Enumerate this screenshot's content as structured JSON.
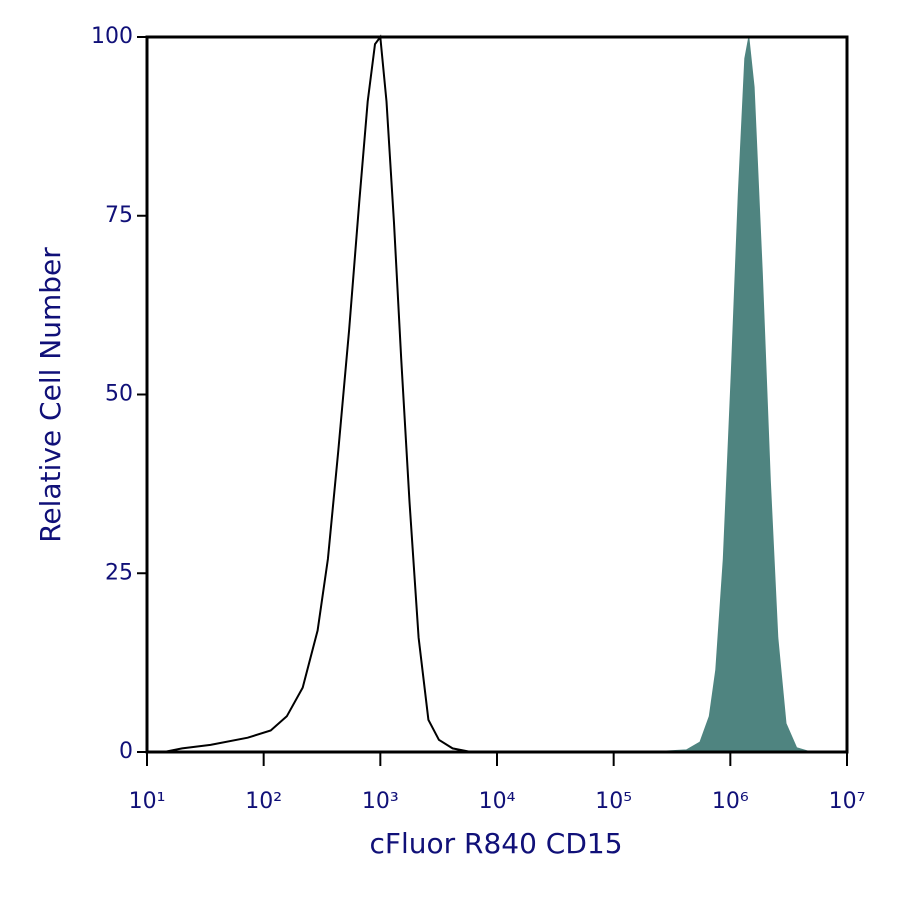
{
  "chart_data": {
    "type": "line",
    "x_label": "cFluor R840 CD15",
    "y_label": "Relative Cell Number",
    "xscale": "log",
    "xlim": [
      10,
      10000000
    ],
    "ylim": [
      0,
      100
    ],
    "xticks": [
      {
        "value": 10,
        "label": "10¹"
      },
      {
        "value": 100,
        "label": "10²"
      },
      {
        "value": 1000,
        "label": "10³"
      },
      {
        "value": 10000,
        "label": "10⁴"
      },
      {
        "value": 100000,
        "label": "10⁵"
      },
      {
        "value": 1000000,
        "label": "10⁶"
      },
      {
        "value": 10000000,
        "label": "10⁷"
      }
    ],
    "yticks": [
      0,
      25,
      50,
      75,
      100
    ],
    "series": [
      {
        "color": "#000000",
        "filled": false,
        "x": [
          14,
          20,
          35,
          73,
          115,
          158,
          216,
          290,
          355,
          435,
          540,
          660,
          780,
          900,
          1000,
          1130,
          1310,
          1510,
          1780,
          2130,
          2580,
          3180,
          4160,
          6000
        ],
        "values": [
          0,
          0.5,
          1,
          2,
          3,
          5,
          9,
          17,
          27,
          42,
          59,
          77,
          91,
          99,
          100,
          91,
          74,
          55,
          35,
          16,
          4.5,
          1.7,
          0.5,
          0
        ]
      },
      {
        "color": "#4f8480",
        "filled": true,
        "x": [
          200000,
          420000,
          550000,
          660000,
          750000,
          870000,
          1020000,
          1170000,
          1330000,
          1440000,
          1600000,
          1880000,
          2200000,
          2550000,
          3000000,
          3700000,
          4900000
        ],
        "values": [
          0,
          0.3,
          1.4,
          5,
          11.5,
          27,
          53,
          78,
          97,
          100,
          93,
          67,
          38,
          16,
          4,
          0.6,
          0
        ]
      }
    ]
  }
}
